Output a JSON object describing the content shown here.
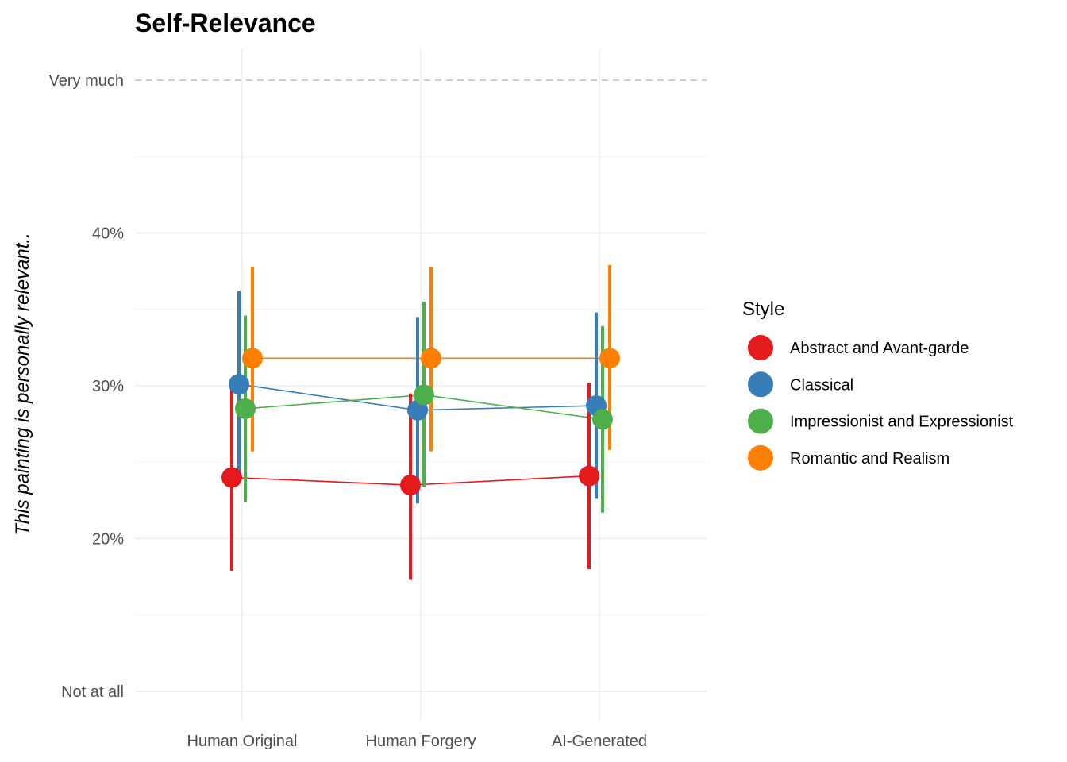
{
  "chart_data": {
    "type": "line",
    "title": "Self-Relevance",
    "xlabel": "",
    "ylabel": "This painting is personally relevant..",
    "categories": [
      "Human Original",
      "Human Forgery",
      "AI-Generated"
    ],
    "ylim": [
      0.095,
      0.52
    ],
    "y_ticks": [
      {
        "value": 0.1,
        "label": "Not at all"
      },
      {
        "value": 0.2,
        "label": "20%"
      },
      {
        "value": 0.3,
        "label": "30%"
      },
      {
        "value": 0.4,
        "label": "40%"
      },
      {
        "value": 0.5,
        "label": "Very much"
      }
    ],
    "reference_line": {
      "value": 0.5,
      "style": "dashed"
    },
    "grid": true,
    "legend": {
      "title": "Style",
      "position": "right"
    },
    "series": [
      {
        "name": "Abstract and Avant-garde",
        "color": "#e41a1c",
        "values": [
          0.24,
          0.235,
          0.241
        ],
        "lower": [
          0.179,
          0.173,
          0.18
        ],
        "upper": [
          0.3,
          0.295,
          0.302
        ]
      },
      {
        "name": "Classical",
        "color": "#377eb8",
        "values": [
          0.301,
          0.284,
          0.287
        ],
        "lower": [
          0.239,
          0.223,
          0.226
        ],
        "upper": [
          0.362,
          0.345,
          0.348
        ]
      },
      {
        "name": "Impressionist and Expressionist",
        "color": "#4daf4a",
        "values": [
          0.285,
          0.294,
          0.278
        ],
        "lower": [
          0.224,
          0.234,
          0.217
        ],
        "upper": [
          0.346,
          0.355,
          0.339
        ]
      },
      {
        "name": "Romantic and Realism",
        "color": "#ff7f00",
        "values": [
          0.318,
          0.318,
          0.318
        ],
        "lower": [
          0.257,
          0.257,
          0.258
        ],
        "upper": [
          0.378,
          0.378,
          0.379
        ]
      }
    ]
  }
}
